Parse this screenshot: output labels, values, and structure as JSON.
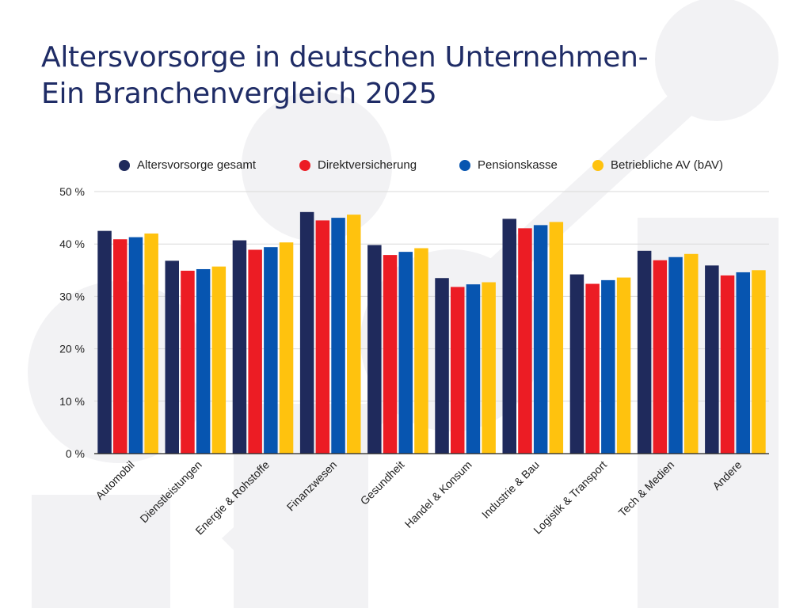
{
  "title_lines": [
    "Altersvorsorge in deutschen Unternehmen-",
    "Ein Branchenvergleich 2025"
  ],
  "colors": {
    "title": "#1f2c66",
    "background_shape": "#f2f2f4",
    "grid": "#d9d9d9",
    "axis": "#222222"
  },
  "chart_data": {
    "type": "bar",
    "title": "Altersvorsorge in deutschen Unternehmen- Ein Branchenvergleich 2025",
    "xlabel": "",
    "ylabel": "",
    "ylim": [
      0,
      50
    ],
    "yticks": [
      0,
      10,
      20,
      30,
      40,
      50
    ],
    "ytick_labels": [
      "0 %",
      "10 %",
      "20 %",
      "30 %",
      "40 %",
      "50 %"
    ],
    "grid": true,
    "legend_position": "top",
    "categories": [
      "Automobil",
      "Dienstleistungen",
      "Energie & Rohstoffe",
      "Finanzwesen",
      "Gesundheit",
      "Handel & Konsum",
      "Industrie & Bau",
      "Logistik & Transport",
      "Tech & Medien",
      "Andere"
    ],
    "series": [
      {
        "name": "Altersvorsorge gesamt",
        "color": "#1f2a5c",
        "values": [
          42.5,
          36.8,
          40.7,
          46.1,
          39.8,
          33.5,
          44.8,
          34.2,
          38.7,
          35.9
        ]
      },
      {
        "name": "Direktversicherung",
        "color": "#ec1c24",
        "values": [
          40.9,
          34.9,
          38.9,
          44.5,
          37.9,
          31.8,
          43.0,
          32.4,
          36.9,
          34.0
        ]
      },
      {
        "name": "Pensionskasse",
        "color": "#0755b0",
        "values": [
          41.3,
          35.2,
          39.4,
          45.0,
          38.5,
          32.3,
          43.6,
          33.1,
          37.5,
          34.6
        ]
      },
      {
        "name": "Betriebliche AV (bAV)",
        "color": "#ffc20e",
        "values": [
          42.0,
          35.7,
          40.3,
          45.6,
          39.2,
          32.7,
          44.2,
          33.6,
          38.1,
          35.0
        ]
      }
    ]
  }
}
